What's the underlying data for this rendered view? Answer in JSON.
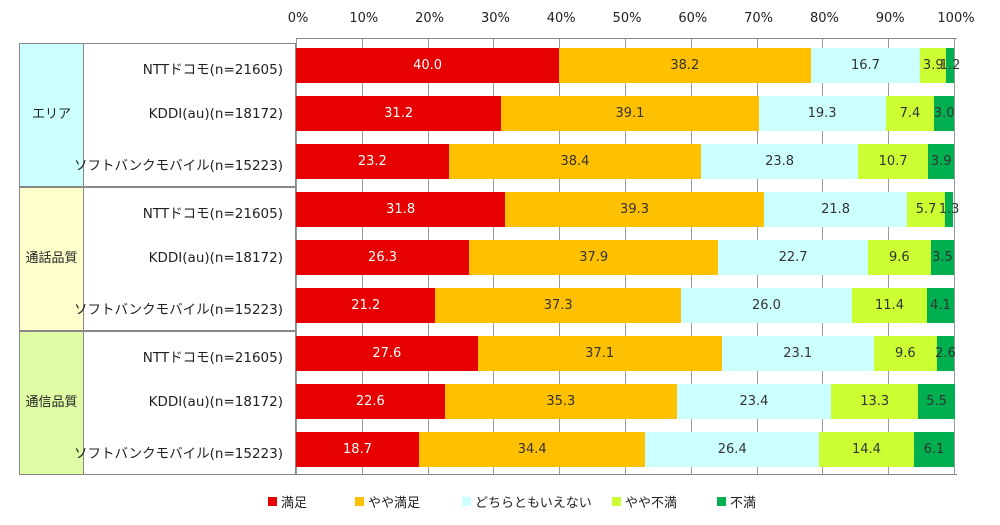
{
  "chart_data": {
    "type": "bar",
    "orientation": "horizontal-stacked-100",
    "xlim": [
      0,
      100
    ],
    "ticks": [
      "0%",
      "10%",
      "20%",
      "30%",
      "40%",
      "50%",
      "60%",
      "70%",
      "80%",
      "90%",
      "100%"
    ],
    "series": [
      {
        "name": "満足",
        "color": "#e60000",
        "text_color": "#ffffff"
      },
      {
        "name": "やや満足",
        "color": "#ffc000",
        "text_color": "#333333"
      },
      {
        "name": "どちらともいえない",
        "color": "#ccffff",
        "text_color": "#333333"
      },
      {
        "name": "やや不満",
        "color": "#ccff33",
        "text_color": "#333333"
      },
      {
        "name": "不満",
        "color": "#00b050",
        "text_color": "#333333"
      }
    ],
    "groups": [
      {
        "label": [
          "エリア"
        ],
        "bg": "#ccffff",
        "rows": [
          {
            "label": "NTTドコモ(n=21605)",
            "values": [
              40.0,
              38.2,
              16.7,
              3.9,
              1.2
            ]
          },
          {
            "label": "KDDI(au)(n=18172)",
            "values": [
              31.2,
              39.1,
              19.3,
              7.4,
              3.0
            ]
          },
          {
            "label": "ソフトバンクモバイル(n=15223)",
            "values": [
              23.2,
              38.4,
              23.8,
              10.7,
              3.9
            ]
          }
        ]
      },
      {
        "label": [
          "通話",
          "品質"
        ],
        "bg": "#ffffcc",
        "rows": [
          {
            "label": "NTTドコモ(n=21605)",
            "values": [
              31.8,
              39.3,
              21.8,
              5.7,
              1.3
            ]
          },
          {
            "label": "KDDI(au)(n=18172)",
            "values": [
              26.3,
              37.9,
              22.7,
              9.6,
              3.5
            ]
          },
          {
            "label": "ソフトバンクモバイル(n=15223)",
            "values": [
              21.2,
              37.3,
              26.0,
              11.4,
              4.1
            ]
          }
        ]
      },
      {
        "label": [
          "通信",
          "品質"
        ],
        "bg": "#e0fba6",
        "rows": [
          {
            "label": "NTTドコモ(n=21605)",
            "values": [
              27.6,
              37.1,
              23.1,
              9.6,
              2.6
            ]
          },
          {
            "label": "KDDI(au)(n=18172)",
            "values": [
              22.6,
              35.3,
              23.4,
              13.3,
              5.5
            ]
          },
          {
            "label": "ソフトバンクモバイル(n=15223)",
            "values": [
              18.7,
              34.4,
              26.4,
              14.4,
              6.1
            ]
          }
        ]
      }
    ],
    "legend": "bottom"
  }
}
